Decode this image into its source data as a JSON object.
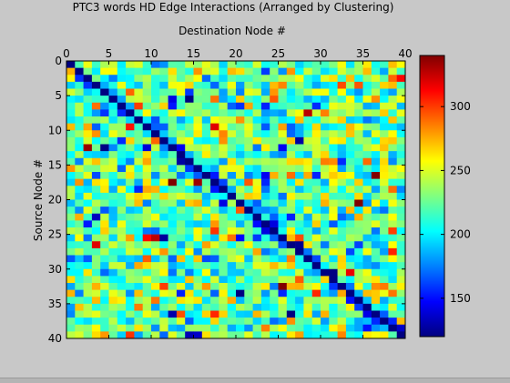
{
  "chart_data": {
    "type": "heatmap",
    "title": "PTC3 words HD Edge Interactions (Arranged by Clustering)",
    "xlabel": "Destination Node #",
    "ylabel": "Source Node #",
    "x_axis_position": "top",
    "xlim": [
      0,
      40
    ],
    "ylim": [
      0,
      40
    ],
    "x_ticks": [
      "0",
      "5",
      "10",
      "15",
      "20",
      "25",
      "30",
      "35",
      "40"
    ],
    "y_ticks": [
      "0",
      "5",
      "10",
      "15",
      "20",
      "25",
      "30",
      "35",
      "40"
    ],
    "n_rows": 40,
    "n_cols": 40,
    "colormap": "jet",
    "clim": [
      120,
      340
    ],
    "diagonal_value": 120,
    "colorbar": {
      "position": "right",
      "ticks": [
        "150",
        "200",
        "250",
        "300"
      ],
      "tick_values": [
        150,
        200,
        250,
        300
      ]
    },
    "values_note": "",
    "grid": false
  }
}
